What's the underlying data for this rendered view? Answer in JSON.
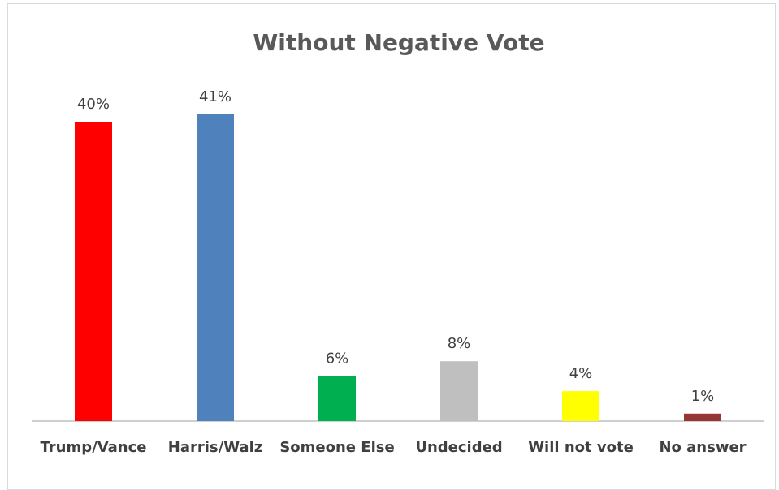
{
  "chart_data": {
    "type": "bar",
    "title": "Without Negative Vote",
    "categories": [
      "Trump/Vance",
      "Harris/Walz",
      "Someone Else",
      "Undecided",
      "Will not vote",
      "No answer"
    ],
    "values": [
      40,
      41,
      6,
      8,
      4,
      1
    ],
    "data_labels": [
      "40%",
      "41%",
      "6%",
      "8%",
      "4%",
      "1%"
    ],
    "colors": [
      "#ff0000",
      "#4f81bd",
      "#00b050",
      "#bfbfbf",
      "#ffff00",
      "#953735"
    ],
    "xlabel": "",
    "ylabel": "",
    "ylim": [
      0,
      41
    ],
    "grid": false,
    "legend": "none"
  }
}
